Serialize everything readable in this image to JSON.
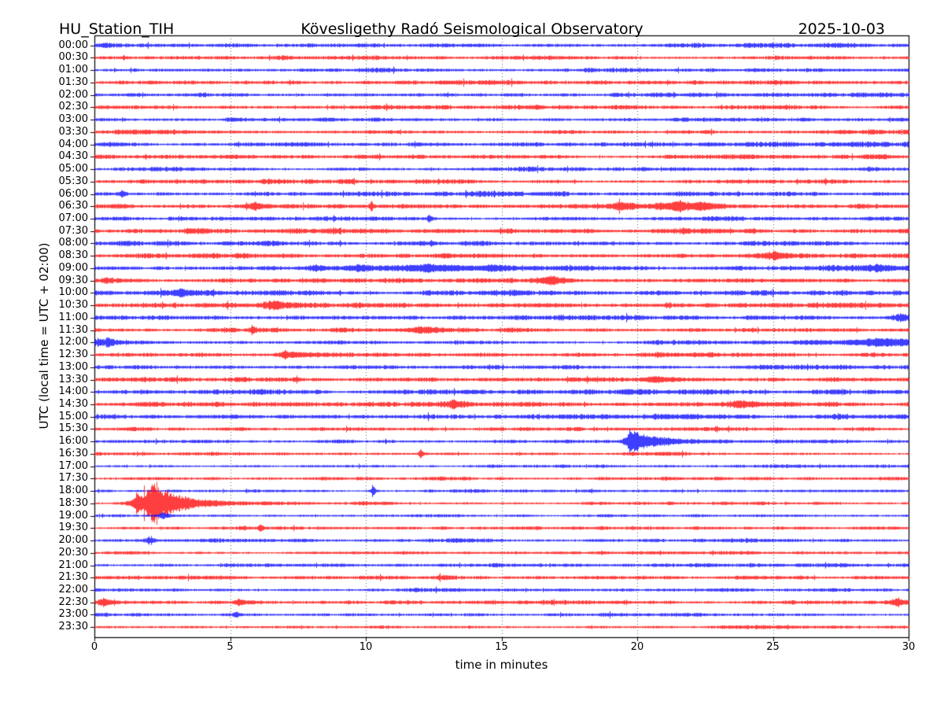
{
  "chart_data": {
    "type": "line",
    "subtype": "helicorder-day-plot",
    "station": "HU_Station_TIH",
    "title": "Kövesligethy Radó Seismological Observatory",
    "date": "2025-10-03",
    "xlabel": "time in minutes",
    "ylabel": "UTC (local time = UTC + 02:00)",
    "x_range": [
      0,
      30
    ],
    "x_ticks": [
      0,
      5,
      10,
      15,
      20,
      25,
      30
    ],
    "grid_minutes": [
      5,
      10,
      15,
      20,
      25
    ],
    "grid_style": "dotted",
    "minutes_per_row": 30,
    "trace_colors": {
      "b": "#0000ff",
      "r": "#ff0000"
    },
    "frame_color": "#000000",
    "rows": [
      {
        "t": "00:00",
        "c": "b",
        "n": 1.0
      },
      {
        "t": "00:30",
        "c": "r",
        "n": 1.0
      },
      {
        "t": "01:00",
        "c": "b",
        "n": 0.95
      },
      {
        "t": "01:30",
        "c": "r",
        "n": 1.0
      },
      {
        "t": "02:00",
        "c": "b",
        "n": 0.95
      },
      {
        "t": "02:30",
        "c": "r",
        "n": 1.05
      },
      {
        "t": "03:00",
        "c": "b",
        "n": 0.9
      },
      {
        "t": "03:30",
        "c": "r",
        "n": 1.15
      },
      {
        "t": "04:00",
        "c": "b",
        "n": 1.0
      },
      {
        "t": "04:30",
        "c": "r",
        "n": 1.1
      },
      {
        "t": "05:00",
        "c": "b",
        "n": 0.95
      },
      {
        "t": "05:30",
        "c": "r",
        "n": 1.05
      },
      {
        "t": "06:00",
        "c": "b",
        "n": 1.1
      },
      {
        "t": "06:30",
        "c": "r",
        "n": 1.2
      },
      {
        "t": "07:00",
        "c": "b",
        "n": 1.1
      },
      {
        "t": "07:30",
        "c": "r",
        "n": 1.2
      },
      {
        "t": "08:00",
        "c": "b",
        "n": 1.15
      },
      {
        "t": "08:30",
        "c": "r",
        "n": 1.3
      },
      {
        "t": "09:00",
        "c": "b",
        "n": 1.2
      },
      {
        "t": "09:30",
        "c": "r",
        "n": 1.25
      },
      {
        "t": "10:00",
        "c": "b",
        "n": 1.2
      },
      {
        "t": "10:30",
        "c": "r",
        "n": 1.3
      },
      {
        "t": "11:00",
        "c": "b",
        "n": 1.1
      },
      {
        "t": "11:30",
        "c": "r",
        "n": 1.15
      },
      {
        "t": "12:00",
        "c": "b",
        "n": 1.15
      },
      {
        "t": "12:30",
        "c": "r",
        "n": 1.15
      },
      {
        "t": "13:00",
        "c": "b",
        "n": 1.1
      },
      {
        "t": "13:30",
        "c": "r",
        "n": 1.25
      },
      {
        "t": "14:00",
        "c": "b",
        "n": 1.2
      },
      {
        "t": "14:30",
        "c": "r",
        "n": 1.25
      },
      {
        "t": "15:00",
        "c": "b",
        "n": 1.1
      },
      {
        "t": "15:30",
        "c": "r",
        "n": 0.9
      },
      {
        "t": "16:00",
        "c": "b",
        "n": 0.85
      },
      {
        "t": "16:30",
        "c": "r",
        "n": 0.8
      },
      {
        "t": "17:00",
        "c": "b",
        "n": 0.75
      },
      {
        "t": "17:30",
        "c": "r",
        "n": 0.8
      },
      {
        "t": "18:00",
        "c": "b",
        "n": 0.75
      },
      {
        "t": "18:30",
        "c": "r",
        "n": 0.8
      },
      {
        "t": "19:00",
        "c": "b",
        "n": 0.75
      },
      {
        "t": "19:30",
        "c": "r",
        "n": 0.8
      },
      {
        "t": "20:00",
        "c": "b",
        "n": 0.85
      },
      {
        "t": "20:30",
        "c": "r",
        "n": 0.8
      },
      {
        "t": "21:00",
        "c": "b",
        "n": 0.9
      },
      {
        "t": "21:30",
        "c": "r",
        "n": 0.95
      },
      {
        "t": "22:00",
        "c": "b",
        "n": 0.85
      },
      {
        "t": "22:30",
        "c": "r",
        "n": 0.9
      },
      {
        "t": "23:00",
        "c": "b",
        "n": 0.8
      },
      {
        "t": "23:30",
        "c": "r",
        "n": 0.85
      }
    ],
    "events": [
      {
        "row": "06:00",
        "minute": 1.0,
        "amp": 4,
        "rise": 0.06,
        "decay": 0.1
      },
      {
        "row": "06:30",
        "minute": 5.9,
        "amp": 4.5,
        "rise": 0.3,
        "decay": 0.4
      },
      {
        "row": "06:30",
        "minute": 10.2,
        "amp": 6.5,
        "rise": 0.05,
        "decay": 0.08
      },
      {
        "row": "06:30",
        "minute": 19.3,
        "amp": 4,
        "rise": 0.3,
        "decay": 0.4
      },
      {
        "row": "06:30",
        "minute": 21.4,
        "amp": 5,
        "rise": 0.4,
        "decay": 0.7
      },
      {
        "row": "06:30",
        "minute": 22.3,
        "amp": 4,
        "rise": 0.3,
        "decay": 0.5
      },
      {
        "row": "07:00",
        "minute": 12.3,
        "amp": 5,
        "rise": 0.05,
        "decay": 0.1
      },
      {
        "row": "08:30",
        "minute": 25.0,
        "amp": 4,
        "rise": 0.3,
        "decay": 0.4
      },
      {
        "row": "09:00",
        "minute": 8.1,
        "amp": 3.5,
        "rise": 0.2,
        "decay": 0.3
      },
      {
        "row": "09:00",
        "minute": 9.7,
        "amp": 4,
        "rise": 0.15,
        "decay": 0.25
      },
      {
        "row": "09:00",
        "minute": 12.3,
        "amp": 4.5,
        "rise": 1.3,
        "decay": 1.6
      },
      {
        "row": "09:00",
        "minute": 14.6,
        "amp": 3.5,
        "rise": 0.2,
        "decay": 0.3
      },
      {
        "row": "09:00",
        "minute": 28.8,
        "amp": 3.5,
        "rise": 0.8,
        "decay": 1.0
      },
      {
        "row": "09:30",
        "minute": 16.8,
        "amp": 5.5,
        "rise": 0.2,
        "decay": 0.3
      },
      {
        "row": "10:00",
        "minute": 3.2,
        "amp": 4,
        "rise": 0.6,
        "decay": 0.8
      },
      {
        "row": "10:30",
        "minute": 6.6,
        "amp": 4.5,
        "rise": 0.3,
        "decay": 0.5
      },
      {
        "row": "11:00",
        "minute": 29.7,
        "amp": 4,
        "rise": 0.3,
        "decay": 0.3
      },
      {
        "row": "11:30",
        "minute": 5.8,
        "amp": 4,
        "rise": 0.06,
        "decay": 0.1
      },
      {
        "row": "11:30",
        "minute": 12.0,
        "amp": 3.5,
        "rise": 0.5,
        "decay": 0.7
      },
      {
        "row": "12:00",
        "minute": 0.5,
        "amp": 4,
        "rise": 0.2,
        "decay": 0.3
      },
      {
        "row": "12:00",
        "minute": 28.8,
        "amp": 4.5,
        "rise": 1.2,
        "decay": 2.0
      },
      {
        "row": "12:30",
        "minute": 7.0,
        "amp": 5,
        "rise": 0.2,
        "decay": 0.35
      },
      {
        "row": "13:30",
        "minute": 20.6,
        "amp": 4,
        "rise": 0.3,
        "decay": 0.5
      },
      {
        "row": "14:30",
        "minute": 13.2,
        "amp": 4,
        "rise": 0.1,
        "decay": 0.2
      },
      {
        "row": "14:30",
        "minute": 23.8,
        "amp": 3.5,
        "rise": 0.4,
        "decay": 0.6
      },
      {
        "row": "16:00",
        "minute": 19.7,
        "amp": 14,
        "rise": 0.12,
        "decay": 1.0
      },
      {
        "row": "16:30",
        "minute": 12.0,
        "amp": 7,
        "rise": 0.05,
        "decay": 0.08
      },
      {
        "row": "18:00",
        "minute": 10.25,
        "amp": 8,
        "rise": 0.05,
        "decay": 0.08
      },
      {
        "row": "18:30",
        "minute": 1.55,
        "amp": 12,
        "rise": 0.1,
        "decay": 0.18
      },
      {
        "row": "18:30",
        "minute": 2.1,
        "amp": 27,
        "rise": 0.25,
        "decay": 1.0
      },
      {
        "row": "19:00",
        "minute": 2.5,
        "amp": 4,
        "rise": 0.1,
        "decay": 0.2
      },
      {
        "row": "19:30",
        "minute": 6.1,
        "amp": 4,
        "rise": 0.06,
        "decay": 0.1
      },
      {
        "row": "20:00",
        "minute": 2.0,
        "amp": 4,
        "rise": 0.08,
        "decay": 0.15
      },
      {
        "row": "22:30",
        "minute": 0.3,
        "amp": 5,
        "rise": 0.15,
        "decay": 0.3
      },
      {
        "row": "22:30",
        "minute": 5.3,
        "amp": 4,
        "rise": 0.1,
        "decay": 0.2
      },
      {
        "row": "22:30",
        "minute": 29.6,
        "amp": 4.5,
        "rise": 0.2,
        "decay": 0.2
      },
      {
        "row": "23:00",
        "minute": 5.2,
        "amp": 3.5,
        "rise": 0.06,
        "decay": 0.1
      }
    ]
  }
}
